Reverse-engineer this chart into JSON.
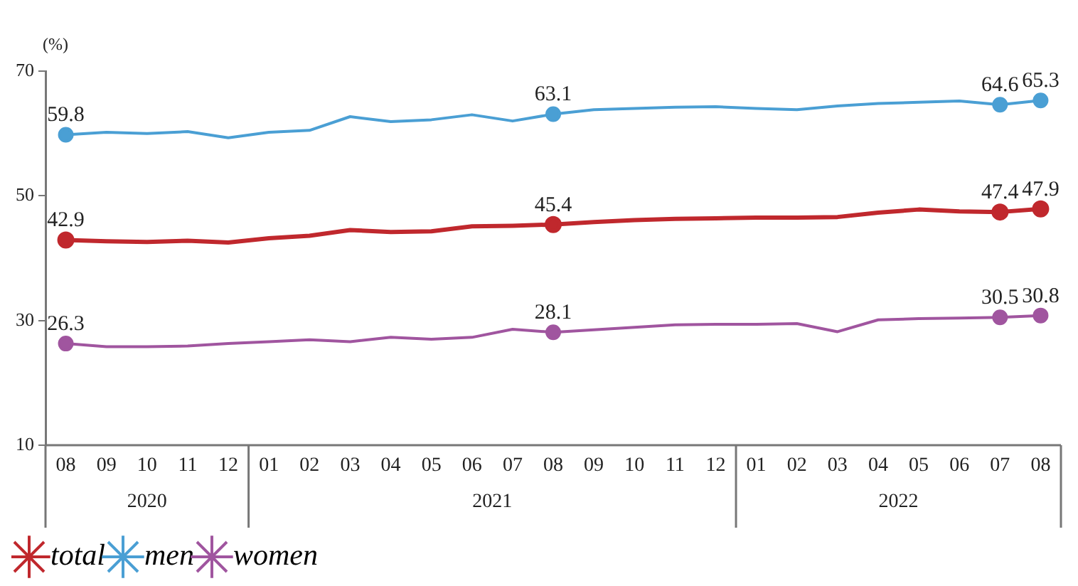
{
  "chart_data": {
    "type": "line",
    "ylabel": "(%)",
    "categories": [
      "08",
      "09",
      "10",
      "11",
      "12",
      "01",
      "02",
      "03",
      "04",
      "05",
      "06",
      "07",
      "08",
      "09",
      "10",
      "11",
      "12",
      "01",
      "02",
      "03",
      "04",
      "05",
      "06",
      "07",
      "08"
    ],
    "annotations": [
      "2020",
      "2021",
      "2022"
    ],
    "ylim": [
      10,
      70
    ],
    "yticks": [
      10,
      30,
      50,
      70
    ],
    "grid": false,
    "legend": "bottom left",
    "line_style": "solid",
    "series": [
      {
        "name": "total",
        "color": "#c0282d",
        "values": [
          42.9,
          42.7,
          42.6,
          42.8,
          42.5,
          43.2,
          43.6,
          44.5,
          44.2,
          44.3,
          45.1,
          45.2,
          45.4,
          45.8,
          46.1,
          46.3,
          46.4,
          46.5,
          46.5,
          46.6,
          47.3,
          47.8,
          47.5,
          47.4,
          47.9
        ],
        "value_labels": [
          "42.9",
          null,
          null,
          null,
          null,
          null,
          null,
          null,
          null,
          null,
          null,
          null,
          "45.4",
          null,
          null,
          null,
          null,
          null,
          null,
          null,
          null,
          null,
          null,
          "47.4",
          "47.9"
        ]
      },
      {
        "name": "men",
        "color": "#4a9fd4",
        "values": [
          59.8,
          60.2,
          60.0,
          60.3,
          59.3,
          60.2,
          60.5,
          62.7,
          61.9,
          62.2,
          63.0,
          62.0,
          63.1,
          63.8,
          64.0,
          64.2,
          64.3,
          64.0,
          63.8,
          64.4,
          64.8,
          65.0,
          65.2,
          64.6,
          65.3
        ],
        "value_labels": [
          "59.8",
          null,
          null,
          null,
          null,
          null,
          null,
          null,
          null,
          null,
          null,
          null,
          "63.1",
          null,
          null,
          null,
          null,
          null,
          null,
          null,
          null,
          null,
          null,
          "64.6",
          "65.3"
        ]
      },
      {
        "name": "women",
        "color": "#a0559f",
        "values": [
          26.3,
          25.8,
          25.8,
          25.9,
          26.3,
          26.6,
          26.9,
          26.6,
          27.3,
          27.0,
          27.3,
          28.6,
          28.1,
          28.5,
          28.9,
          29.3,
          29.4,
          29.4,
          29.5,
          28.2,
          30.1,
          30.3,
          30.4,
          30.5,
          30.8
        ],
        "value_labels": [
          "26.3",
          null,
          null,
          null,
          null,
          null,
          null,
          null,
          null,
          null,
          null,
          null,
          "28.1",
          null,
          null,
          null,
          null,
          null,
          null,
          null,
          null,
          null,
          null,
          "30.5",
          "30.8"
        ]
      }
    ]
  }
}
